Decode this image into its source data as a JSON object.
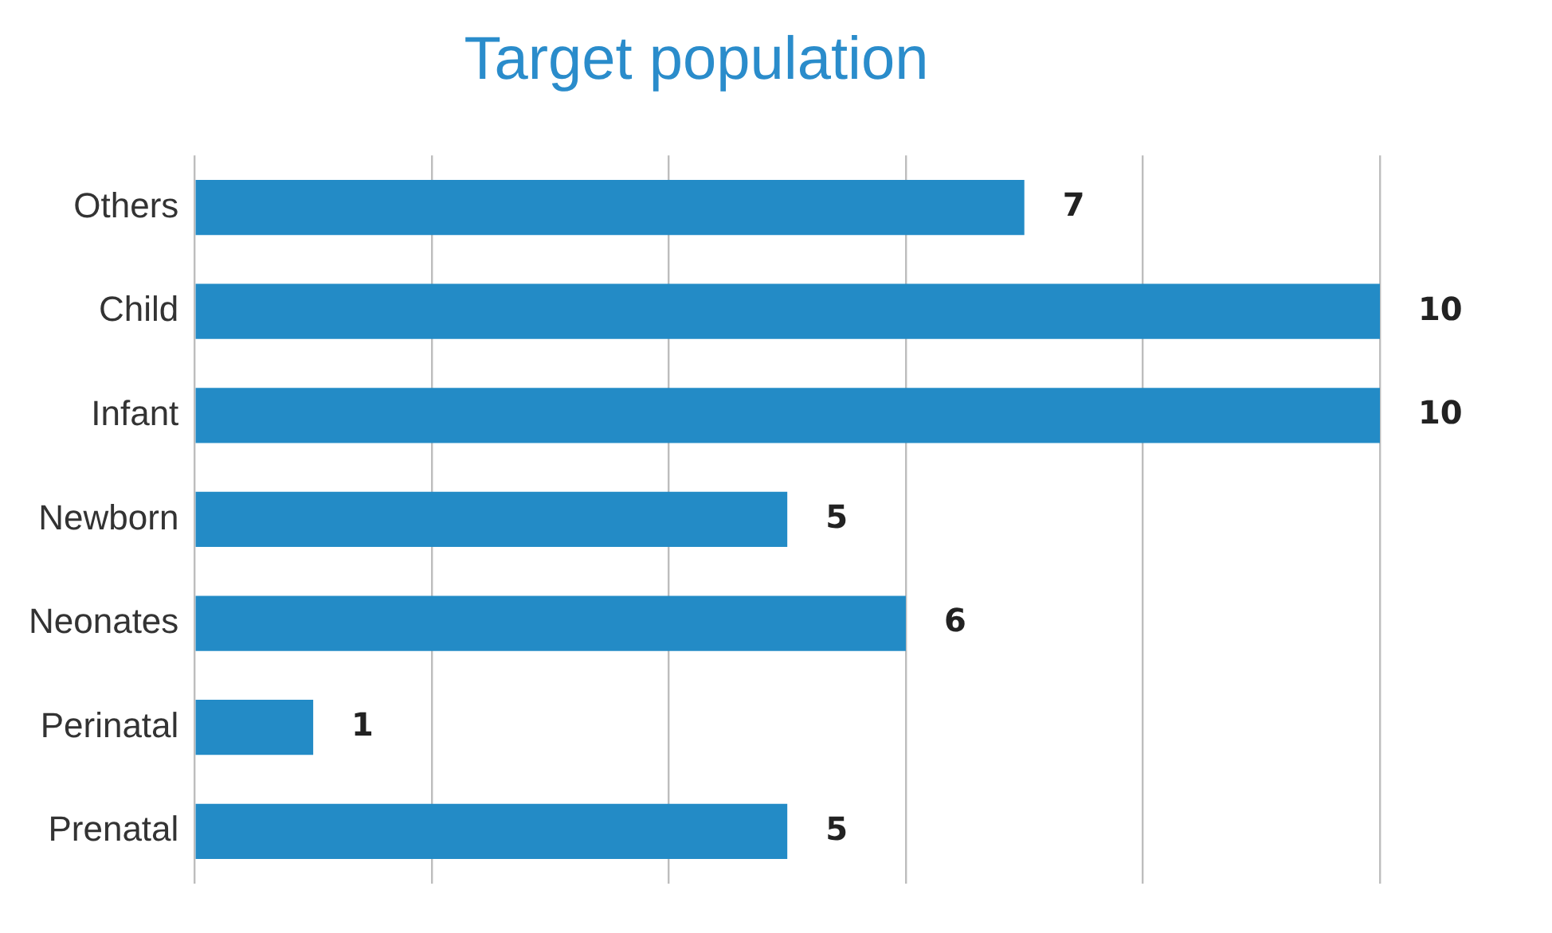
{
  "chart_data": {
    "type": "bar",
    "title": "Target population",
    "orientation": "horizontal",
    "categories": [
      "Others",
      "Child",
      "Infant",
      "Newborn",
      "Neonates",
      "Perinatal",
      "Prenatal"
    ],
    "values": [
      7,
      10,
      10,
      5,
      6,
      1,
      5
    ],
    "color": "#238bc6",
    "xlim": [
      0,
      10
    ],
    "xticks": [
      {
        "value": 0,
        "label": null
      },
      {
        "value": 2,
        "label": null
      },
      {
        "value": 4,
        "label": null
      },
      {
        "value": 6,
        "label": null
      },
      {
        "value": 8,
        "label": null
      },
      {
        "value": 10,
        "label": null
      }
    ],
    "grid": "x",
    "tick_labels": "y",
    "data_labels": true,
    "legend": false
  }
}
